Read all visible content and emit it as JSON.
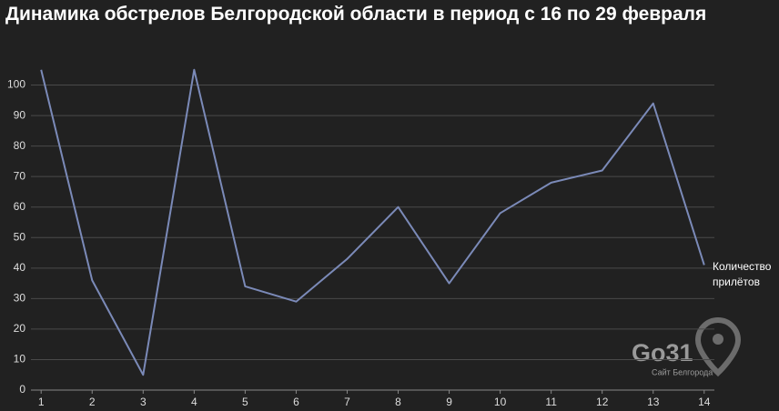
{
  "chart_data": {
    "type": "line",
    "title": "Динамика обстрелов Белгородской области в период с 16 по 29 февраля",
    "x": [
      1,
      2,
      3,
      4,
      5,
      6,
      7,
      8,
      9,
      10,
      11,
      12,
      13,
      14
    ],
    "series": [
      {
        "name": "Количество прилётов",
        "color": "#7b8ab8",
        "values": [
          105,
          36,
          5,
          105,
          34,
          29,
          43,
          60,
          35,
          58,
          68,
          72,
          94,
          41
        ]
      }
    ],
    "xlim": [
      0.8,
      14.2
    ],
    "xticks": [
      1,
      2,
      3,
      4,
      5,
      6,
      7,
      8,
      9,
      10,
      11,
      12,
      13,
      14
    ],
    "ylim": [
      0,
      110
    ],
    "yticks": [
      0,
      10,
      20,
      30,
      40,
      50,
      60,
      70,
      80,
      90,
      100
    ],
    "grid": true
  },
  "watermark": {
    "logo": "Go31",
    "caption": "Сайт Белгорода"
  }
}
